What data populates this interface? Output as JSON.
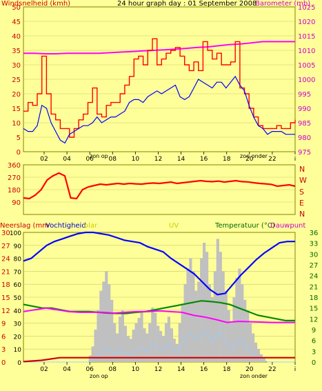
{
  "chart_data": [
    {
      "type": "line",
      "title": "24 hour graph day : 01 September 2008",
      "ylabel_left": "Windsnelheid (kmh)",
      "ylabel_right": "Barometer (mb)",
      "ylim_left": [
        0,
        50
      ],
      "ylim_right": [
        975,
        1025
      ],
      "yticks_left": [
        "0",
        "5",
        "10",
        "15",
        "20",
        "25",
        "30",
        "35",
        "40",
        "45",
        "50"
      ],
      "yticks_right": [
        "975",
        "980",
        "985",
        "990",
        "995",
        "1000",
        "1005",
        "1010",
        "1015",
        "1020",
        "1025"
      ],
      "xticks": [
        "02",
        "04",
        "06",
        "08",
        "10",
        "12",
        "14",
        "16",
        "18",
        "20",
        "22",
        "i"
      ],
      "annotations": [
        "zon op",
        "zon onder"
      ],
      "series": [
        {
          "color": "#ff0000",
          "values": [
            14,
            17,
            16,
            20,
            33,
            20,
            13,
            11,
            8,
            8,
            5,
            8,
            11,
            13,
            17,
            22,
            13,
            12,
            16,
            17,
            17,
            20,
            23,
            26,
            32,
            33,
            30,
            35,
            39,
            30,
            32,
            34,
            35,
            36,
            33,
            30,
            28,
            31,
            28,
            38,
            35,
            32,
            34,
            30,
            30,
            31,
            38,
            22,
            20,
            15,
            12,
            9,
            8,
            8,
            8,
            9,
            8,
            8,
            10,
            11
          ]
        },
        {
          "color": "#0000ff",
          "values": [
            8,
            7,
            7,
            9,
            16,
            15,
            10,
            7,
            4,
            3,
            6,
            7,
            8,
            9,
            9,
            10,
            12,
            10,
            11,
            12,
            12,
            13,
            14,
            17,
            18,
            18,
            17,
            19,
            20,
            21,
            20,
            21,
            22,
            23,
            19,
            18,
            19,
            22,
            25,
            24,
            23,
            22,
            24,
            24,
            22,
            24,
            26,
            23,
            21,
            16,
            12,
            9,
            8,
            6,
            7,
            7,
            7,
            6,
            6,
            6
          ]
        },
        {
          "color": "#ff00ff",
          "values": [
            1009,
            1009,
            1008.8,
            1008.8,
            1009,
            1009,
            1009,
            1009,
            1009.2,
            1009.4,
            1009.6,
            1009.8,
            1010,
            1010.2,
            1010.4,
            1010.7,
            1011,
            1011.2,
            1011.6,
            1012,
            1012.2,
            1012.6,
            1013,
            1013,
            1013,
            1013
          ]
        }
      ]
    },
    {
      "type": "line",
      "ylim": [
        0,
        360
      ],
      "yticks": [
        "90",
        "180",
        "270",
        "360"
      ],
      "direction_labels": [
        "N",
        "W",
        "S",
        "E",
        "N"
      ],
      "series": [
        {
          "color": "#ff0000",
          "values": [
            120,
            115,
            140,
            180,
            250,
            280,
            300,
            280,
            120,
            115,
            180,
            200,
            210,
            220,
            215,
            220,
            225,
            220,
            225,
            222,
            220,
            225,
            228,
            225,
            230,
            235,
            225,
            230,
            235,
            240,
            245,
            240,
            238,
            242,
            235,
            240,
            245,
            238,
            236,
            230,
            225,
            222,
            218,
            205,
            210,
            215,
            205
          ]
        }
      ]
    },
    {
      "type": "line",
      "labels_top": [
        "Neerslag (mm",
        "Vochtigheid",
        "olar",
        "UV",
        "Temperatuur (°C)",
        "Dauwpunt"
      ],
      "ylim_rain": [
        0,
        30
      ],
      "yticks_rain": [
        "0",
        "3",
        "6",
        "9",
        "12",
        "15",
        "18",
        "21",
        "24",
        "27",
        "30"
      ],
      "ylim_humidity": [
        0,
        100
      ],
      "yticks_humidity": [
        "0",
        "10",
        "20",
        "30",
        "40",
        "50",
        "60",
        "70",
        "80",
        "90",
        "100"
      ],
      "ylim_temp": [
        0,
        36
      ],
      "yticks_temp": [
        "0",
        "3",
        "6",
        "9",
        "12",
        "15",
        "18",
        "21",
        "24",
        "27",
        "30",
        "33",
        "36"
      ],
      "series": [
        {
          "color": "#0000ff",
          "values": [
            78,
            80,
            85,
            90,
            93,
            95,
            97,
            99,
            100,
            100,
            99,
            98,
            96,
            94,
            93,
            92,
            89,
            87,
            85,
            80,
            76,
            72,
            68,
            62,
            56,
            52,
            53,
            60,
            67,
            73,
            79,
            84,
            88,
            92,
            93,
            93
          ]
        },
        {
          "color": "#008800",
          "values": [
            16,
            15.5,
            15,
            15,
            14.5,
            14,
            14,
            14,
            13.8,
            13.6,
            13.5,
            13.5,
            13.8,
            14,
            14.5,
            15,
            15.5,
            16,
            16.5,
            17,
            16.8,
            16.5,
            16,
            15,
            14,
            13,
            12.5,
            12,
            11.5,
            11.5
          ]
        },
        {
          "color": "#ff00ff",
          "values": [
            14,
            14.5,
            15,
            14.5,
            14,
            13.8,
            13.8,
            13.8,
            13.6,
            13.8,
            14,
            14,
            14.2,
            14,
            13.8,
            13,
            12.5,
            11.8,
            11,
            11.3,
            11.2,
            11.1,
            11,
            11,
            11
          ]
        },
        {
          "color": "#cc0000",
          "values": [
            0.1,
            0.4,
            1,
            1,
            1,
            1,
            1,
            1,
            1,
            1,
            1,
            1,
            1,
            1,
            1,
            1
          ]
        }
      ]
    }
  ]
}
